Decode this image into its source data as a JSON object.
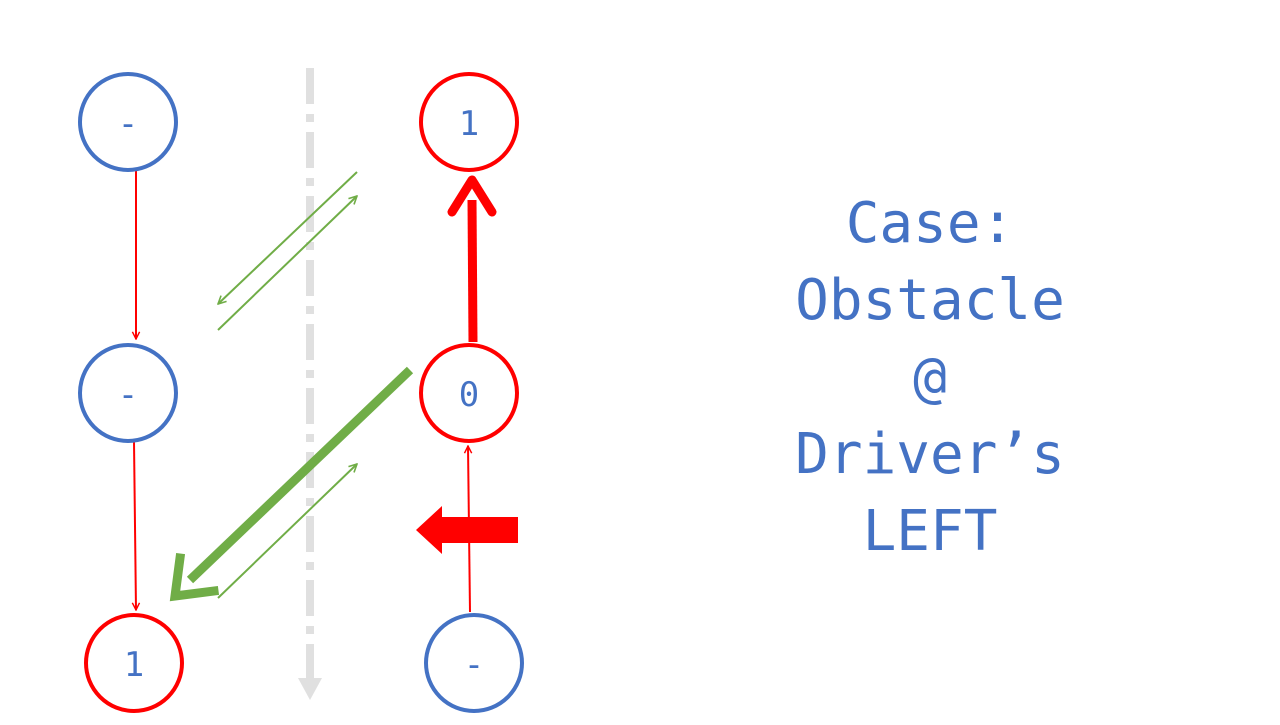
{
  "colors": {
    "blue": "#4472c4",
    "red": "#ff0000",
    "green": "#70ad47",
    "divider": "#e0e0e0"
  },
  "nodes": {
    "left_top": "-",
    "left_mid": "-",
    "left_bottom": "1",
    "right_top": "1",
    "right_mid": "0",
    "right_bottom": "-"
  },
  "caption": {
    "line1": "Case:",
    "line2": "Obstacle",
    "line3": "@",
    "line4": "Driver’s",
    "line5": "LEFT"
  }
}
